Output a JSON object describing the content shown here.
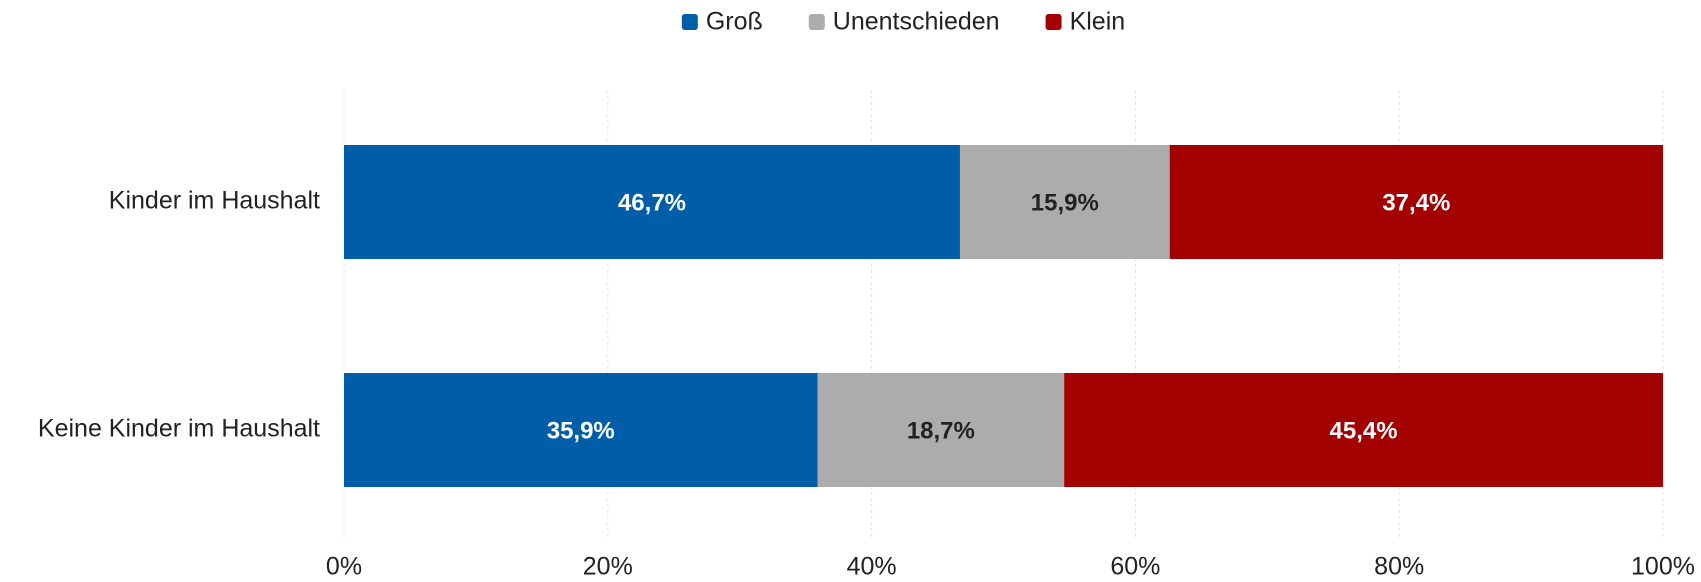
{
  "chart_data": {
    "type": "stacked-bar-horizontal",
    "categories": [
      "Kinder im Haushalt",
      "Keine Kinder im Haushalt"
    ],
    "series": [
      {
        "name": "Groß",
        "color": "#005ea8",
        "label_color": "#ffffff",
        "values": [
          46.7,
          35.9
        ],
        "value_labels": [
          "46,7%",
          "35,9%"
        ]
      },
      {
        "name": "Unentschieden",
        "color": "#acacac",
        "label_color": "#222222",
        "values": [
          15.9,
          18.7
        ],
        "value_labels": [
          "15,9%",
          "18,7%"
        ]
      },
      {
        "name": "Klein",
        "color": "#a30000",
        "label_color": "#ffffff",
        "values": [
          37.4,
          45.4
        ],
        "value_labels": [
          "37,4%",
          "45,4%"
        ]
      }
    ],
    "xlim": [
      0,
      100
    ],
    "xticks": [
      {
        "value": 0,
        "label": "0%"
      },
      {
        "value": 20,
        "label": "20%"
      },
      {
        "value": 40,
        "label": "40%"
      },
      {
        "value": 60,
        "label": "60%"
      },
      {
        "value": 80,
        "label": "80%"
      },
      {
        "value": 100,
        "label": "100%"
      }
    ],
    "grid": true,
    "legend": "top"
  }
}
